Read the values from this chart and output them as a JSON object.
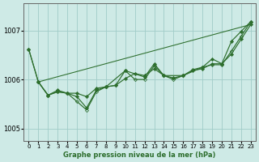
{
  "title": "Graphe pression niveau de la mer (hPa)",
  "xlim": [
    -0.5,
    23.5
  ],
  "ylim": [
    1004.75,
    1007.55
  ],
  "yticks": [
    1005,
    1006,
    1007
  ],
  "xticks": [
    0,
    1,
    2,
    3,
    4,
    5,
    6,
    7,
    8,
    9,
    10,
    11,
    12,
    13,
    14,
    15,
    16,
    17,
    18,
    19,
    20,
    21,
    22,
    23
  ],
  "background_color": "#ceeae6",
  "grid_color": "#a0ccc8",
  "line_color": "#2d6e2d",
  "line1": [
    [
      0,
      1006.62
    ],
    [
      1,
      1005.95
    ],
    [
      2,
      1005.68
    ],
    [
      3,
      1005.78
    ],
    [
      4,
      1005.72
    ],
    [
      5,
      1005.72
    ],
    [
      6,
      1005.65
    ],
    [
      7,
      1005.82
    ],
    [
      8,
      1005.85
    ],
    [
      9,
      1005.88
    ],
    [
      10,
      1006.02
    ],
    [
      11,
      1006.12
    ],
    [
      12,
      1006.08
    ],
    [
      13,
      1006.22
    ],
    [
      14,
      1006.08
    ],
    [
      15,
      1006.03
    ],
    [
      16,
      1006.08
    ],
    [
      17,
      1006.18
    ],
    [
      18,
      1006.22
    ],
    [
      19,
      1006.32
    ],
    [
      20,
      1006.32
    ],
    [
      21,
      1006.52
    ],
    [
      22,
      1006.82
    ],
    [
      23,
      1007.12
    ]
  ],
  "line2": [
    [
      0,
      1006.62
    ],
    [
      1,
      1005.95
    ],
    [
      2,
      1005.68
    ],
    [
      3,
      1005.75
    ],
    [
      4,
      1005.72
    ],
    [
      5,
      1005.55
    ],
    [
      6,
      1005.38
    ],
    [
      7,
      1005.75
    ],
    [
      8,
      1005.85
    ],
    [
      9,
      1005.88
    ],
    [
      10,
      1006.18
    ],
    [
      11,
      1006.0
    ],
    [
      12,
      1006.0
    ],
    [
      13,
      1006.28
    ],
    [
      14,
      1006.08
    ],
    [
      15,
      1006.0
    ],
    [
      16,
      1006.08
    ],
    [
      17,
      1006.2
    ],
    [
      18,
      1006.25
    ],
    [
      19,
      1006.3
    ],
    [
      20,
      1006.3
    ],
    [
      21,
      1006.58
    ],
    [
      22,
      1006.88
    ],
    [
      23,
      1007.18
    ]
  ],
  "line3_x": [
    1,
    23
  ],
  "line3_y": [
    1005.95,
    1007.12
  ],
  "line4": [
    [
      1,
      1005.95
    ],
    [
      2,
      1005.68
    ],
    [
      3,
      1005.75
    ],
    [
      4,
      1005.72
    ],
    [
      5,
      1005.65
    ],
    [
      6,
      1005.42
    ],
    [
      7,
      1005.78
    ],
    [
      8,
      1005.85
    ],
    [
      10,
      1006.18
    ],
    [
      12,
      1006.05
    ],
    [
      13,
      1006.32
    ],
    [
      14,
      1006.08
    ],
    [
      16,
      1006.08
    ],
    [
      18,
      1006.25
    ],
    [
      19,
      1006.42
    ],
    [
      20,
      1006.32
    ],
    [
      21,
      1006.78
    ],
    [
      22,
      1006.98
    ],
    [
      23,
      1007.18
    ]
  ]
}
